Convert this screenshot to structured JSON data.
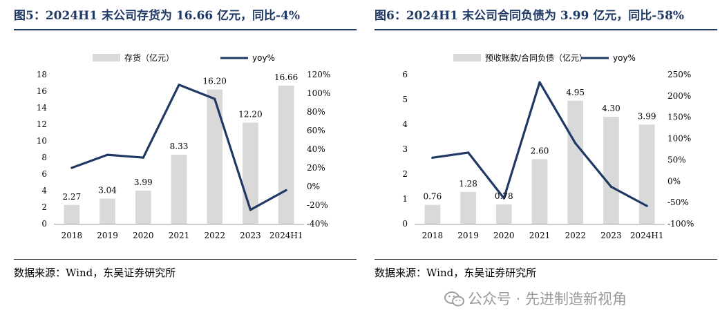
{
  "chart_data": [
    {
      "type": "bar+line",
      "title": "图5：2024H1 末公司存货为 16.66 亿元，同比-4%",
      "source": "数据来源：Wind，东吴证券研究所",
      "categories": [
        "2018",
        "2019",
        "2020",
        "2021",
        "2022",
        "2023",
        "2024H1"
      ],
      "series": [
        {
          "name": "存货（亿元）",
          "type": "bar",
          "axis": "left",
          "values": [
            2.27,
            3.04,
            3.99,
            8.33,
            16.2,
            12.2,
            16.66
          ],
          "labels": [
            "2.27",
            "3.04",
            "3.99",
            "8.33",
            "16.20",
            "12.20",
            "16.66"
          ]
        },
        {
          "name": "yoy%",
          "type": "line",
          "axis": "right",
          "values": [
            20,
            34,
            31,
            109,
            94,
            -25,
            -4
          ]
        }
      ],
      "y_left": {
        "min": 0,
        "max": 18,
        "step": 2,
        "ticks": [
          "0",
          "2",
          "4",
          "6",
          "8",
          "10",
          "12",
          "14",
          "16",
          "18"
        ]
      },
      "y_right": {
        "min": -40,
        "max": 120,
        "step": 20,
        "ticks": [
          "-40%",
          "-20%",
          "0%",
          "20%",
          "40%",
          "60%",
          "80%",
          "100%",
          "120%"
        ]
      },
      "legend": "top-center",
      "grid": false
    },
    {
      "type": "bar+line",
      "title": "图6：2024H1 末公司合同负债为 3.99 亿元，同比-58%",
      "source": "数据来源：Wind，东吴证券研究所",
      "categories": [
        "2018",
        "2019",
        "2020",
        "2021",
        "2022",
        "2023",
        "2024H1"
      ],
      "series": [
        {
          "name": "预收账款/合同负债（亿元）",
          "type": "bar",
          "axis": "left",
          "values": [
            0.76,
            1.28,
            0.78,
            2.6,
            4.95,
            4.3,
            3.99
          ],
          "labels": [
            "0.76",
            "1.28",
            "0.78",
            "2.60",
            "4.95",
            "4.30",
            "3.99"
          ]
        },
        {
          "name": "yoy%",
          "type": "line",
          "axis": "right",
          "values": [
            55,
            67,
            -40,
            232,
            89,
            -13,
            -58
          ]
        }
      ],
      "y_left": {
        "min": 0,
        "max": 6,
        "step": 1,
        "ticks": [
          "0",
          "1",
          "2",
          "3",
          "4",
          "5",
          "6"
        ]
      },
      "y_right": {
        "min": -100,
        "max": 250,
        "step": 50,
        "ticks": [
          "-100%",
          "-50%",
          "0%",
          "50%",
          "100%",
          "150%",
          "200%",
          "250%"
        ]
      },
      "legend": "top-center",
      "grid": false
    }
  ],
  "colors": {
    "bar": "#d9d9d9",
    "line": "#1f3864",
    "title": "#1f3864",
    "watermark": "#9a9a9a"
  },
  "watermark": {
    "icon": "wechat-icon",
    "text": "公众号 · 先进制造新视角"
  }
}
